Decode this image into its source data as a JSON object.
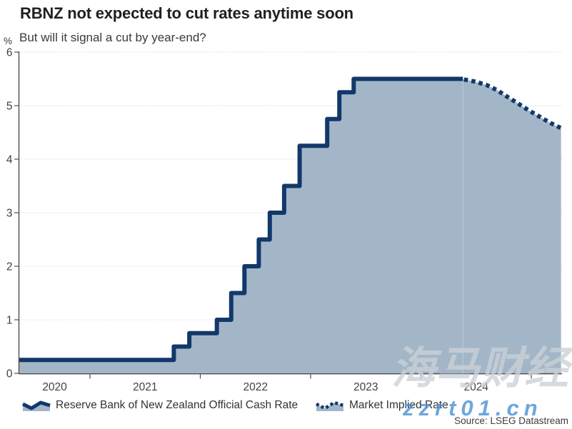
{
  "page": {
    "title": "RBNZ not expected to cut rates anytime soon",
    "subtitle": "But will it signal a cut by year-end?"
  },
  "legend": {
    "items": [
      {
        "label": "Reserve Bank of New Zealand Official Cash Rate",
        "style": "solid-area"
      },
      {
        "label": "Market Implied Rate",
        "style": "dotted"
      }
    ]
  },
  "source": "Source: LSEG Datastream",
  "watermarks": {
    "primary": "海马财经",
    "secondary": "zzrt01.cn"
  },
  "colors": {
    "line": "#12386B",
    "fill": "#A3B6C8",
    "axis": "#4D4D4D",
    "grid": "#C9C9C9",
    "tick_text": "#404040",
    "watermark_gray": "#CBD1D6",
    "watermark_blue": "#4D92D6"
  },
  "chart_data": {
    "type": "area",
    "title": "RBNZ not expected to cut rates anytime soon",
    "subtitle": "But will it signal a cut by year-end?",
    "xlabel": "",
    "ylabel": "%",
    "ylim": [
      0,
      6
    ],
    "y_ticks": [
      0,
      1,
      2,
      3,
      4,
      5,
      6
    ],
    "x_range": [
      2020.36,
      2025.27
    ],
    "x_boundary_ticks": [
      2021,
      2022,
      2023,
      2024,
      2025
    ],
    "x_tick_labels": [
      {
        "pos": 2020.68,
        "label": "2020"
      },
      {
        "pos": 2021.5,
        "label": "2021"
      },
      {
        "pos": 2022.5,
        "label": "2022"
      },
      {
        "pos": 2023.5,
        "label": "2023"
      },
      {
        "pos": 2024.5,
        "label": "2024"
      }
    ],
    "grid": "dotted-horizontal",
    "legend_position": "bottom",
    "series": [
      {
        "name": "Reserve Bank of New Zealand Official Cash Rate",
        "style": "solid-step-area",
        "step_points": [
          [
            2020.36,
            0.25
          ],
          [
            2021.76,
            0.5
          ],
          [
            2021.9,
            0.75
          ],
          [
            2022.15,
            1.0
          ],
          [
            2022.28,
            1.5
          ],
          [
            2022.4,
            2.0
          ],
          [
            2022.53,
            2.5
          ],
          [
            2022.63,
            3.0
          ],
          [
            2022.76,
            3.5
          ],
          [
            2022.9,
            4.25
          ],
          [
            2023.15,
            4.75
          ],
          [
            2023.26,
            5.25
          ],
          [
            2023.39,
            5.5
          ]
        ],
        "end_x": 2024.38
      },
      {
        "name": "Market Implied Rate",
        "style": "dotted-line-area",
        "points": [
          [
            2024.39,
            5.49
          ],
          [
            2024.49,
            5.45
          ],
          [
            2024.59,
            5.39
          ],
          [
            2024.69,
            5.29
          ],
          [
            2024.78,
            5.17
          ],
          [
            2024.88,
            5.04
          ],
          [
            2024.97,
            4.92
          ],
          [
            2025.07,
            4.8
          ],
          [
            2025.17,
            4.68
          ],
          [
            2025.27,
            4.58
          ]
        ]
      }
    ]
  }
}
